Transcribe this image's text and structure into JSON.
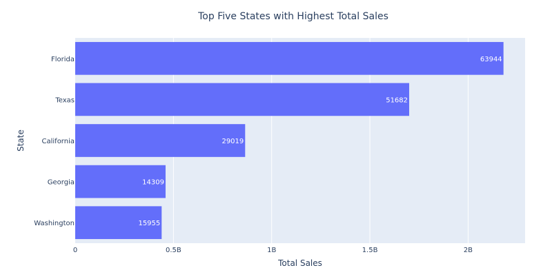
{
  "chart_data": {
    "type": "bar",
    "orientation": "horizontal",
    "title": "Top Five States with Highest Total Sales",
    "xlabel": "Total Sales",
    "ylabel": "State",
    "categories": [
      "Florida",
      "Texas",
      "California",
      "Georgia",
      "Washington"
    ],
    "values": [
      2180000000,
      1700000000,
      865000000,
      460000000,
      440000000
    ],
    "bar_labels": [
      "63944",
      "51682",
      "29019",
      "14309",
      "15955"
    ],
    "xlim": [
      0,
      2290000000
    ],
    "x_ticks": [
      {
        "value": 0,
        "label": "0"
      },
      {
        "value": 500000000,
        "label": "0.5B"
      },
      {
        "value": 1000000000,
        "label": "1B"
      },
      {
        "value": 1500000000,
        "label": "1.5B"
      },
      {
        "value": 2000000000,
        "label": "2B"
      }
    ],
    "grid": true,
    "colors": {
      "bar": "#636efa",
      "plot_background": "#e5ecf6",
      "grid": "#ffffff",
      "text": "#2a3f5f",
      "bar_text": "#ffffff"
    }
  }
}
